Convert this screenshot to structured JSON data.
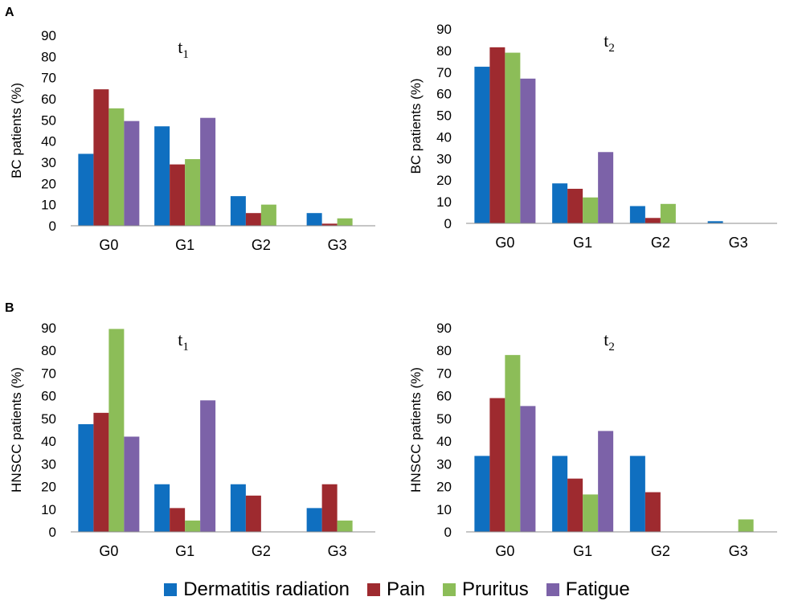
{
  "panel_labels": [
    "A",
    "B"
  ],
  "legend": [
    {
      "name": "Dermatitis radiation",
      "color": "#0f6fc0"
    },
    {
      "name": "Pain",
      "color": "#9e2a2f"
    },
    {
      "name": "Pruritus",
      "color": "#8cbd58"
    },
    {
      "name": "Fatigue",
      "color": "#7c62a8"
    }
  ],
  "chart_data": [
    {
      "type": "bar",
      "panel": "A",
      "title": "t",
      "title_subscript": "1",
      "ylabel": "BC patients (%)",
      "xlabel": "",
      "ylim": [
        0,
        90
      ],
      "yticks": [
        0,
        10,
        20,
        30,
        40,
        50,
        60,
        70,
        80,
        90
      ],
      "categories": [
        "G0",
        "G1",
        "G2",
        "G3"
      ],
      "series": [
        {
          "name": "Dermatitis radiation",
          "values": [
            34,
            47,
            14,
            6
          ]
        },
        {
          "name": "Pain",
          "values": [
            64.5,
            29,
            6,
            1
          ]
        },
        {
          "name": "Pruritus",
          "values": [
            55.5,
            31.5,
            10,
            3.5
          ]
        },
        {
          "name": "Fatigue",
          "values": [
            49.5,
            51,
            0,
            0
          ]
        }
      ]
    },
    {
      "type": "bar",
      "panel": "A",
      "title": "t",
      "title_subscript": "2",
      "ylabel": "BC patients (%)",
      "xlabel": "",
      "ylim": [
        0,
        90
      ],
      "yticks": [
        0,
        10,
        20,
        30,
        40,
        50,
        60,
        70,
        80,
        90
      ],
      "categories": [
        "G0",
        "G1",
        "G2",
        "G3"
      ],
      "series": [
        {
          "name": "Dermatitis radiation",
          "values": [
            72.5,
            18.5,
            8,
            1
          ]
        },
        {
          "name": "Pain",
          "values": [
            81.5,
            16,
            2.5,
            0
          ]
        },
        {
          "name": "Pruritus",
          "values": [
            79,
            12,
            9,
            0
          ]
        },
        {
          "name": "Fatigue",
          "values": [
            67,
            33,
            0,
            0
          ]
        }
      ]
    },
    {
      "type": "bar",
      "panel": "B",
      "title": "t",
      "title_subscript": "1",
      "ylabel": "HNSCC patients (%)",
      "xlabel": "",
      "ylim": [
        0,
        90
      ],
      "yticks": [
        0,
        10,
        20,
        30,
        40,
        50,
        60,
        70,
        80,
        90
      ],
      "categories": [
        "G0",
        "G1",
        "G2",
        "G3"
      ],
      "series": [
        {
          "name": "Dermatitis radiation",
          "values": [
            47.5,
            21,
            21,
            10.5
          ]
        },
        {
          "name": "Pain",
          "values": [
            52.5,
            10.5,
            16,
            21
          ]
        },
        {
          "name": "Pruritus",
          "values": [
            89.5,
            5,
            0,
            5
          ]
        },
        {
          "name": "Fatigue",
          "values": [
            42,
            58,
            0,
            0
          ]
        }
      ]
    },
    {
      "type": "bar",
      "panel": "B",
      "title": "t",
      "title_subscript": "2",
      "ylabel": "HNSCC patients (%)",
      "xlabel": "",
      "ylim": [
        0,
        90
      ],
      "yticks": [
        0,
        10,
        20,
        30,
        40,
        50,
        60,
        70,
        80,
        90
      ],
      "categories": [
        "G0",
        "G1",
        "G2",
        "G3"
      ],
      "series": [
        {
          "name": "Dermatitis radiation",
          "values": [
            33.5,
            33.5,
            33.5,
            0
          ]
        },
        {
          "name": "Pain",
          "values": [
            59,
            23.5,
            17.5,
            0
          ]
        },
        {
          "name": "Pruritus",
          "values": [
            78,
            16.5,
            0,
            5.5
          ]
        },
        {
          "name": "Fatigue",
          "values": [
            55.5,
            44.5,
            0,
            0
          ]
        }
      ]
    }
  ]
}
